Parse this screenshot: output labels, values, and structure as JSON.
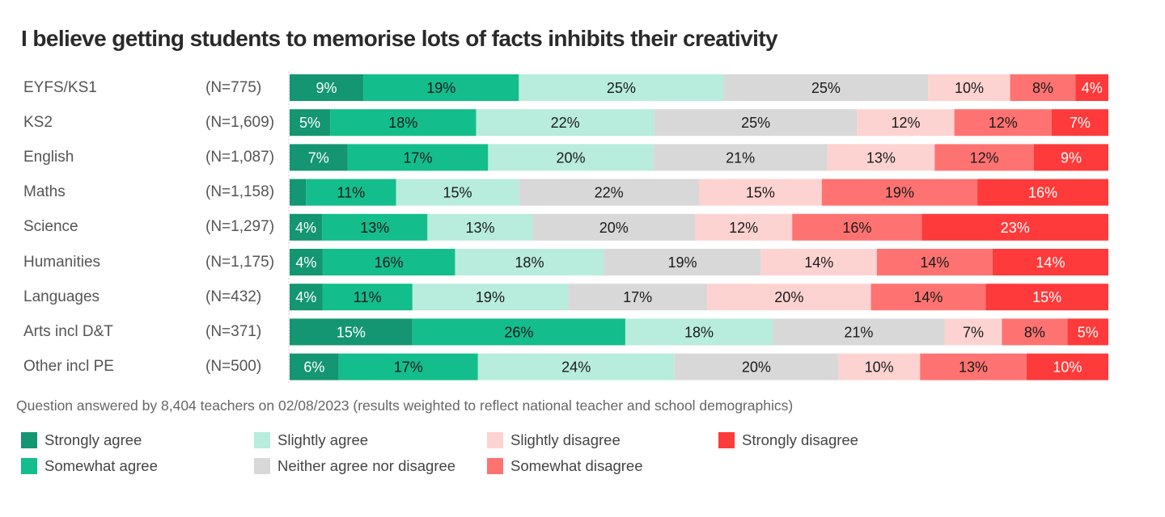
{
  "chart_data": {
    "type": "bar",
    "orientation": "horizontal",
    "stacked": true,
    "title": "I believe getting students to memorise lots of facts inhibits their creativity",
    "xlabel": "",
    "ylabel": "",
    "xlim": [
      0,
      100
    ],
    "grid": false,
    "legend_position": "bottom",
    "categories": [
      "EYFS/KS1",
      "KS2",
      "English",
      "Maths",
      "Science",
      "Humanities",
      "Languages",
      "Arts incl D&T",
      "Other incl PE"
    ],
    "sample_sizes": [
      "(N=775)",
      "(N=1,609)",
      "(N=1,087)",
      "(N=1,158)",
      "(N=1,297)",
      "(N=1,175)",
      "(N=432)",
      "(N=371)",
      "(N=500)"
    ],
    "series": [
      {
        "name": "Strongly agree",
        "color": "#139671",
        "text_color": "#ffffff",
        "values": [
          9,
          5,
          7,
          2,
          4,
          4,
          4,
          15,
          6
        ],
        "labels": [
          "9%",
          "5%",
          "7%",
          "",
          "4%",
          "4%",
          "4%",
          "15%",
          "6%"
        ]
      },
      {
        "name": "Somewhat agree",
        "color": "#13bd8c",
        "text_color": "#1a1a1a",
        "values": [
          19,
          18,
          17,
          11,
          13,
          16,
          11,
          26,
          17
        ],
        "labels": [
          "19%",
          "18%",
          "17%",
          "11%",
          "13%",
          "16%",
          "11%",
          "26%",
          "17%"
        ]
      },
      {
        "name": "Slightly agree",
        "color": "#b8ecdd",
        "text_color": "#1a1a1a",
        "values": [
          25,
          22,
          20,
          15,
          13,
          18,
          19,
          18,
          24
        ],
        "labels": [
          "25%",
          "22%",
          "20%",
          "15%",
          "13%",
          "18%",
          "19%",
          "18%",
          "24%"
        ]
      },
      {
        "name": "Neither agree nor disagree",
        "color": "#d8d8d8",
        "text_color": "#1a1a1a",
        "values": [
          25,
          25,
          21,
          22,
          20,
          19,
          17,
          21,
          20
        ],
        "labels": [
          "25%",
          "25%",
          "21%",
          "22%",
          "20%",
          "19%",
          "17%",
          "21%",
          "20%"
        ]
      },
      {
        "name": "Slightly disagree",
        "color": "#fdd3d2",
        "text_color": "#1a1a1a",
        "values": [
          10,
          12,
          13,
          15,
          12,
          14,
          20,
          7,
          10
        ],
        "labels": [
          "10%",
          "12%",
          "13%",
          "15%",
          "12%",
          "14%",
          "20%",
          "7%",
          "10%"
        ]
      },
      {
        "name": "Somewhat disagree",
        "color": "#fe7371",
        "text_color": "#1a1a1a",
        "values": [
          8,
          12,
          12,
          19,
          16,
          14,
          14,
          8,
          13
        ],
        "labels": [
          "8%",
          "12%",
          "12%",
          "19%",
          "16%",
          "14%",
          "14%",
          "8%",
          "13%"
        ]
      },
      {
        "name": "Strongly disagree",
        "color": "#fe3a3a",
        "text_color": "#ffffff",
        "values": [
          4,
          7,
          9,
          16,
          23,
          14,
          15,
          5,
          10
        ],
        "labels": [
          "4%",
          "7%",
          "9%",
          "16%",
          "23%",
          "14%",
          "15%",
          "5%",
          "10%"
        ]
      }
    ],
    "footnote": "Question answered by 8,404 teachers on 02/08/2023 (results weighted to reflect national teacher and school demographics)"
  }
}
